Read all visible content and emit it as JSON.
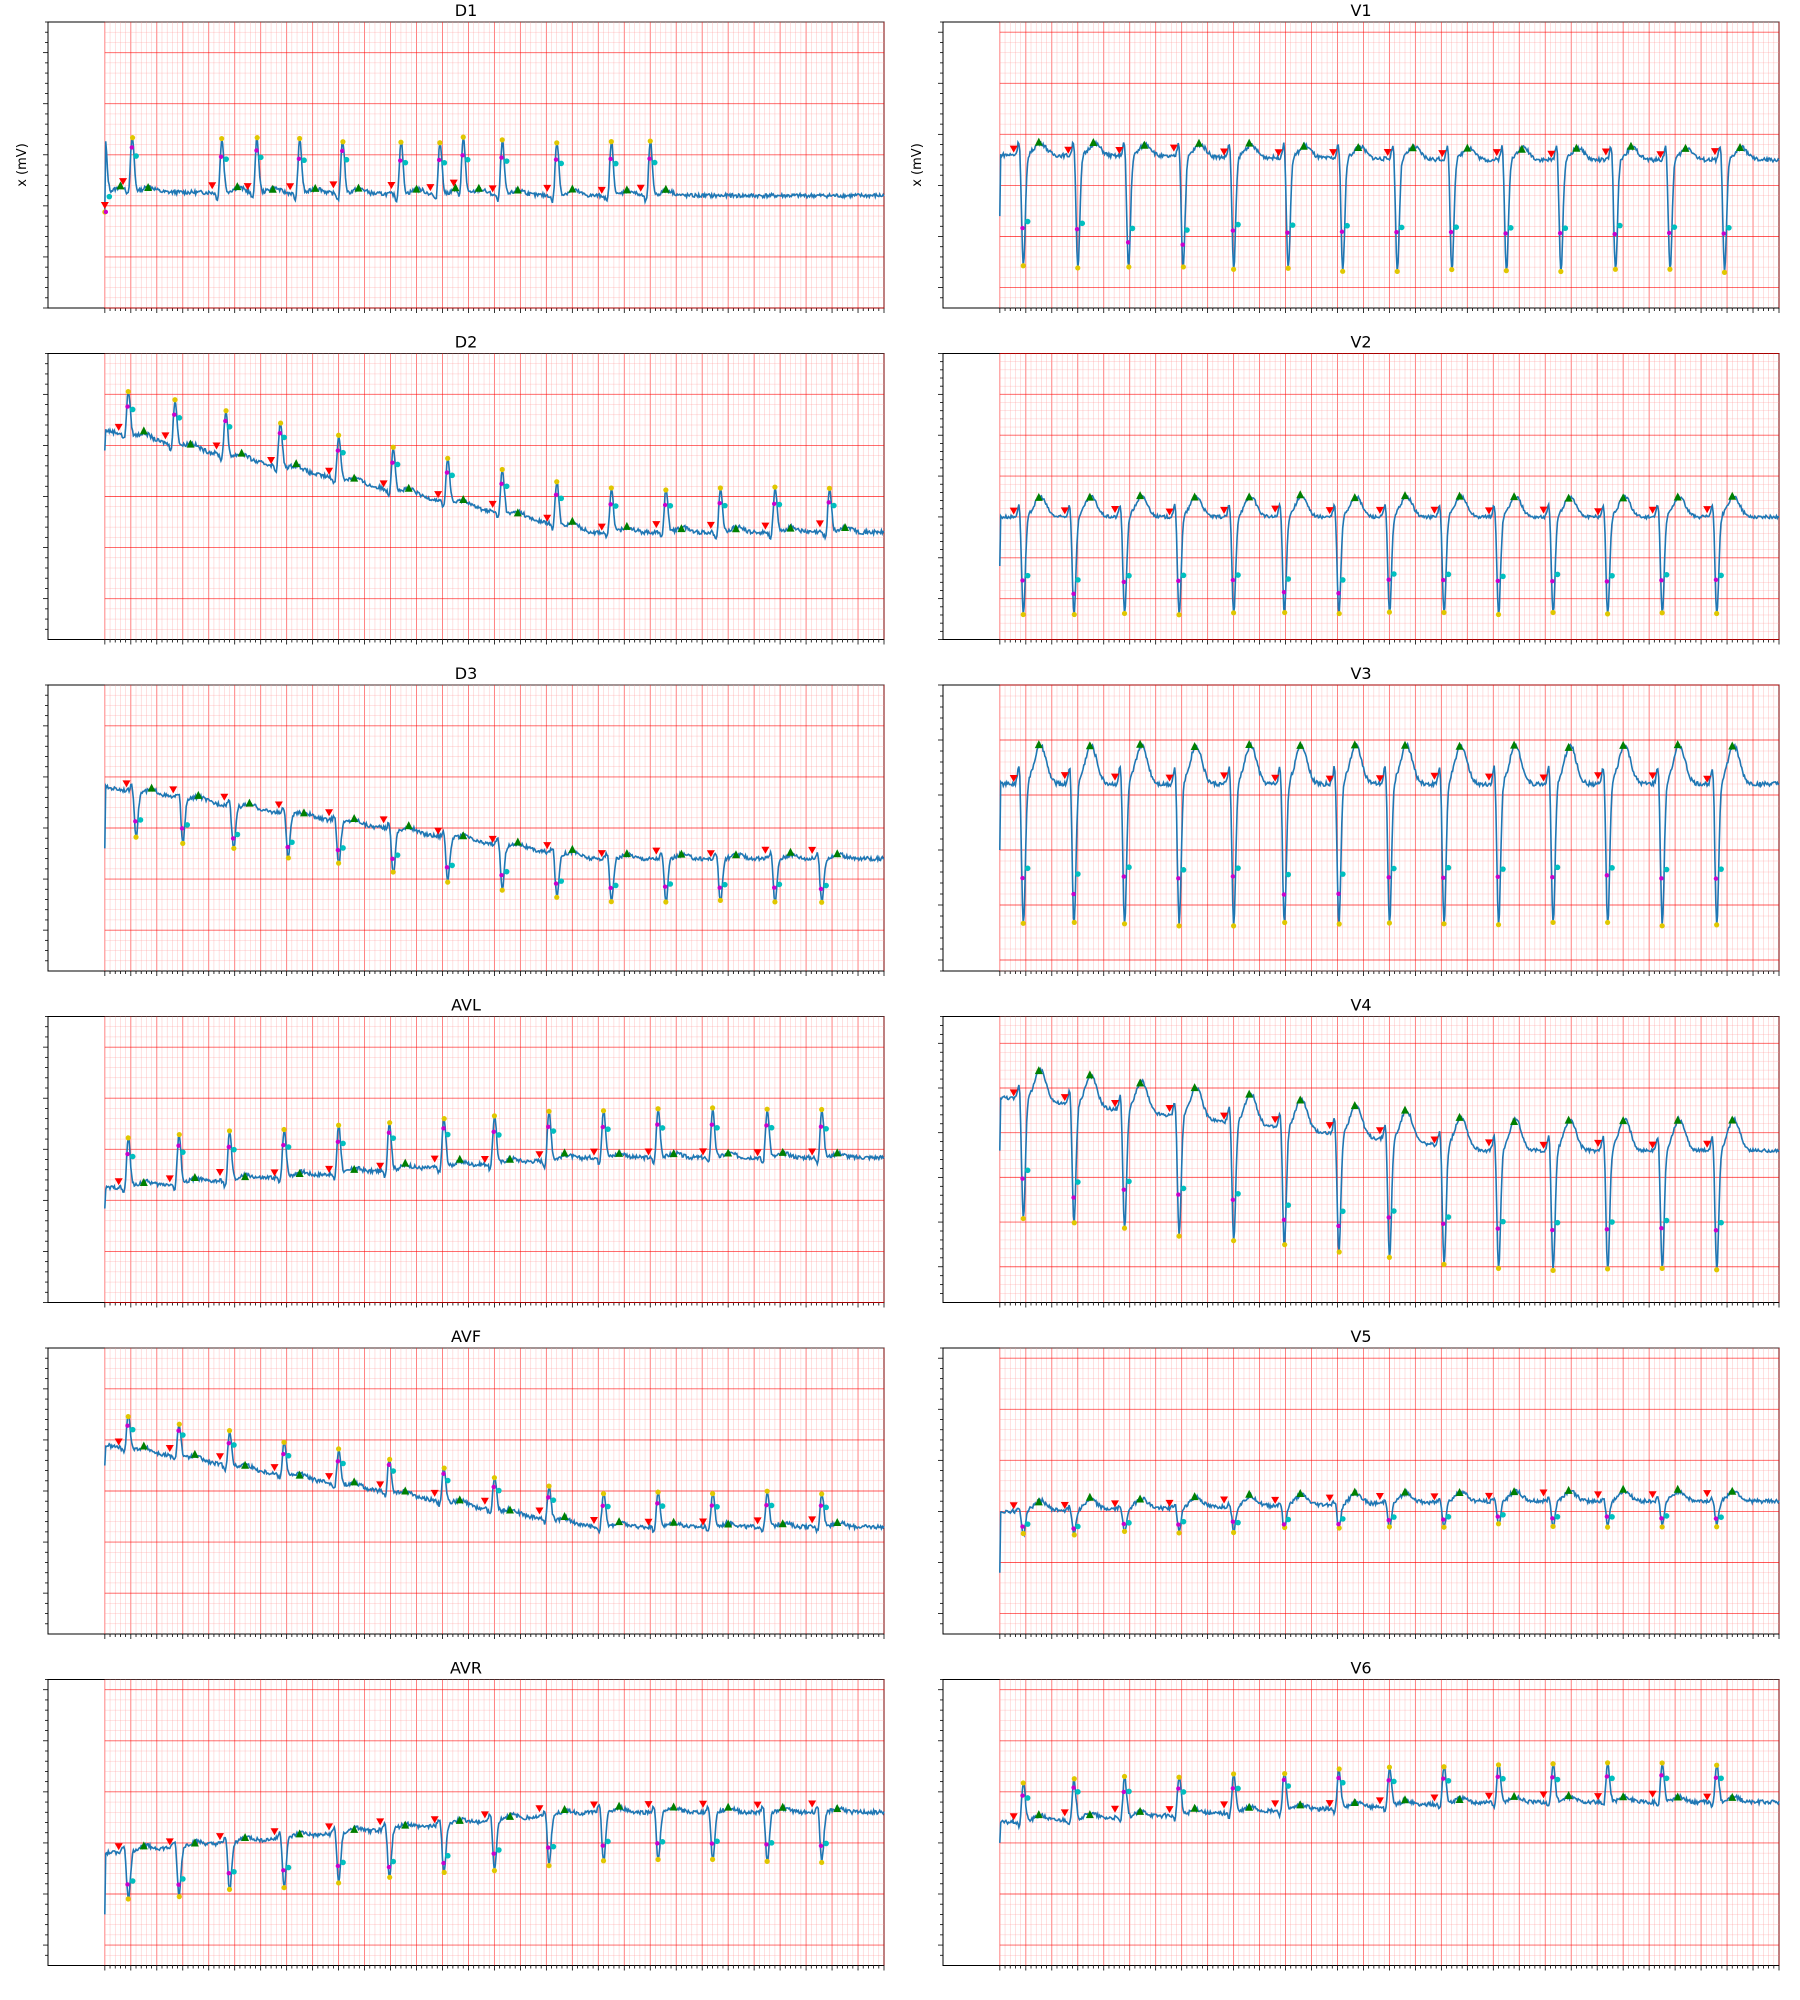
{
  "figure": {
    "ylabel": "x (mV)",
    "style": {
      "signal_color": "#1f77b4",
      "grid_major_color": "#ff0000",
      "grid_minor_color": "#ff9a9a",
      "marker_colors": {
        "onset": "#ff0000",
        "offset": "#008000",
        "peak": "#e0c800",
        "mid": "#00bfbf",
        "trough": "#cc00cc"
      }
    }
  },
  "chart_data": [
    {
      "type": "line",
      "lead": "D1",
      "title": "D1",
      "ylabel": "x (mV)",
      "ylim": [
        -1.0,
        1.8
      ],
      "beats": [
        0.0,
        0.035,
        0.15,
        0.195,
        0.25,
        0.305,
        0.38,
        0.43,
        0.46,
        0.51,
        0.58,
        0.65,
        0.7
      ],
      "amplitude": 0.55,
      "polarity": 1,
      "baseline": [
        0.14,
        0.1
      ],
      "t_wave": 0.05
    },
    {
      "type": "line",
      "lead": "V1",
      "title": "V1",
      "ylabel": "x (mV)",
      "ylim": [
        -1.2,
        1.6
      ],
      "beats": [
        0.03,
        0.1,
        0.165,
        0.235,
        0.3,
        0.37,
        0.44,
        0.51,
        0.58,
        0.65,
        0.72,
        0.79,
        0.86,
        0.93
      ],
      "amplitude": 1.15,
      "polarity": -1,
      "baseline": [
        0.3,
        0.25
      ],
      "t_wave": 0.12
    },
    {
      "type": "line",
      "lead": "D2",
      "title": "D2",
      "ylabel": "",
      "ylim": [
        -1.4,
        1.4
      ],
      "beats": [
        0.03,
        0.09,
        0.155,
        0.225,
        0.3,
        0.37,
        0.44,
        0.51,
        0.58,
        0.65,
        0.72,
        0.79,
        0.86,
        0.93
      ],
      "amplitude": 0.45,
      "polarity": 1,
      "baseline": [
        0.65,
        -0.35
      ],
      "t_wave": 0.05
    },
    {
      "type": "line",
      "lead": "V2",
      "title": "V2",
      "ylabel": "",
      "ylim": [
        -1.5,
        2.0
      ],
      "beats": [
        0.03,
        0.095,
        0.16,
        0.23,
        0.3,
        0.365,
        0.435,
        0.5,
        0.57,
        0.64,
        0.71,
        0.78,
        0.85,
        0.92
      ],
      "amplitude": 1.25,
      "polarity": -1,
      "baseline": [
        0.0,
        0.0
      ],
      "t_wave": 0.25
    },
    {
      "type": "line",
      "lead": "D3",
      "title": "D3",
      "ylabel": "",
      "ylim": [
        -1.4,
        1.4
      ],
      "beats": [
        0.04,
        0.1,
        0.165,
        0.235,
        0.3,
        0.37,
        0.44,
        0.51,
        0.58,
        0.65,
        0.72,
        0.79,
        0.86,
        0.92
      ],
      "amplitude": 0.45,
      "polarity": -1,
      "baseline": [
        0.4,
        -0.3
      ],
      "t_wave": 0.04
    },
    {
      "type": "line",
      "lead": "V3",
      "title": "V3",
      "ylabel": "",
      "ylim": [
        -1.6,
        1.0
      ],
      "beats": [
        0.03,
        0.095,
        0.16,
        0.23,
        0.3,
        0.365,
        0.435,
        0.5,
        0.57,
        0.64,
        0.71,
        0.78,
        0.85,
        0.92
      ],
      "amplitude": 1.35,
      "polarity": -1,
      "baseline": [
        0.1,
        0.1
      ],
      "t_wave": 0.35
    },
    {
      "type": "line",
      "lead": "AVL",
      "title": "AVL",
      "ylabel": "",
      "ylim": [
        -1.0,
        1.8
      ],
      "beats": [
        0.03,
        0.095,
        0.16,
        0.23,
        0.3,
        0.365,
        0.435,
        0.5,
        0.57,
        0.64,
        0.71,
        0.78,
        0.85,
        0.92
      ],
      "amplitude": 0.5,
      "polarity": 1,
      "baseline": [
        0.12,
        0.42
      ],
      "t_wave": 0.04
    },
    {
      "type": "line",
      "lead": "V4",
      "title": "V4",
      "ylabel": "",
      "ylim": [
        -1.4,
        1.8
      ],
      "beats": [
        0.03,
        0.095,
        0.16,
        0.23,
        0.3,
        0.365,
        0.435,
        0.5,
        0.57,
        0.64,
        0.71,
        0.78,
        0.85,
        0.92
      ],
      "amplitude": 1.4,
      "polarity": -1,
      "baseline": [
        0.9,
        0.3
      ],
      "t_wave": 0.35
    },
    {
      "type": "line",
      "lead": "AVF",
      "title": "AVF",
      "ylabel": "",
      "ylim": [
        -1.4,
        1.4
      ],
      "beats": [
        0.03,
        0.095,
        0.16,
        0.23,
        0.3,
        0.365,
        0.435,
        0.5,
        0.57,
        0.64,
        0.71,
        0.78,
        0.85,
        0.92
      ],
      "amplitude": 0.35,
      "polarity": 1,
      "baseline": [
        0.45,
        -0.35
      ],
      "t_wave": 0.04
    },
    {
      "type": "line",
      "lead": "V5",
      "title": "V5",
      "ylabel": "",
      "ylim": [
        -1.2,
        1.6
      ],
      "beats": [
        0.03,
        0.095,
        0.16,
        0.23,
        0.3,
        0.365,
        0.435,
        0.5,
        0.57,
        0.64,
        0.71,
        0.78,
        0.85,
        0.92
      ],
      "amplitude": 0.25,
      "polarity": -1,
      "baseline": [
        0.0,
        0.1
      ],
      "t_wave": 0.1
    },
    {
      "type": "line",
      "lead": "AVR",
      "title": "AVR",
      "ylabel": "",
      "ylim": [
        -1.2,
        1.6
      ],
      "beats": [
        0.03,
        0.095,
        0.16,
        0.23,
        0.3,
        0.365,
        0.435,
        0.5,
        0.57,
        0.64,
        0.71,
        0.78,
        0.85,
        0.92
      ],
      "amplitude": 0.5,
      "polarity": -1,
      "baseline": [
        -0.1,
        0.3
      ],
      "t_wave": 0.04
    },
    {
      "type": "line",
      "lead": "V6",
      "title": "V6",
      "ylabel": "",
      "ylim": [
        -1.2,
        1.6
      ],
      "beats": [
        0.03,
        0.095,
        0.16,
        0.23,
        0.3,
        0.365,
        0.435,
        0.5,
        0.57,
        0.64,
        0.71,
        0.78,
        0.85,
        0.92
      ],
      "amplitude": 0.4,
      "polarity": 1,
      "baseline": [
        0.2,
        0.4
      ],
      "t_wave": 0.05
    }
  ]
}
